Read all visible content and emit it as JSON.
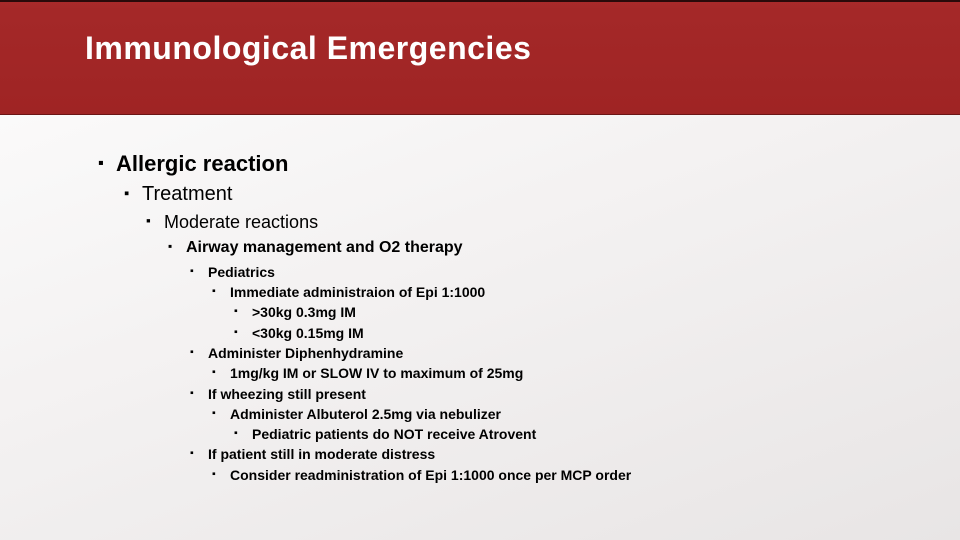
{
  "header": {
    "title": "Immunological Emergencies",
    "background_color": "#a42828",
    "title_color": "#ffffff",
    "title_fontsize": 32
  },
  "body_background": "#f4f2f2",
  "text_color": "#000000",
  "bullet_char": "▪",
  "outline": {
    "l1": "Allergic reaction",
    "l2": "Treatment",
    "l3": "Moderate reactions",
    "l4": "Airway management and O2 therapy",
    "l5_a": "Pediatrics",
    "l6_a1": "Immediate administraion of Epi 1:1000",
    "l7_a1a": ">30kg 0.3mg IM",
    "l7_a1b": "<30kg 0.15mg IM",
    "l5_b": "Administer Diphenhydramine",
    "l6_b1": "1mg/kg IM or SLOW IV to maximum of 25mg",
    "l5_c": "If wheezing still present",
    "l6_c1": "Administer Albuterol 2.5mg via nebulizer",
    "l7_c1a": "Pediatric patients do NOT receive Atrovent",
    "l5_d": "If patient still in moderate distress",
    "l6_d1": "Consider readministration of Epi 1:1000 once per MCP order"
  },
  "font_sizes_pt": {
    "l1": 22,
    "l2": 20,
    "l3": 18,
    "l4": 16,
    "l5": 14,
    "l6": 14,
    "l7": 14
  }
}
